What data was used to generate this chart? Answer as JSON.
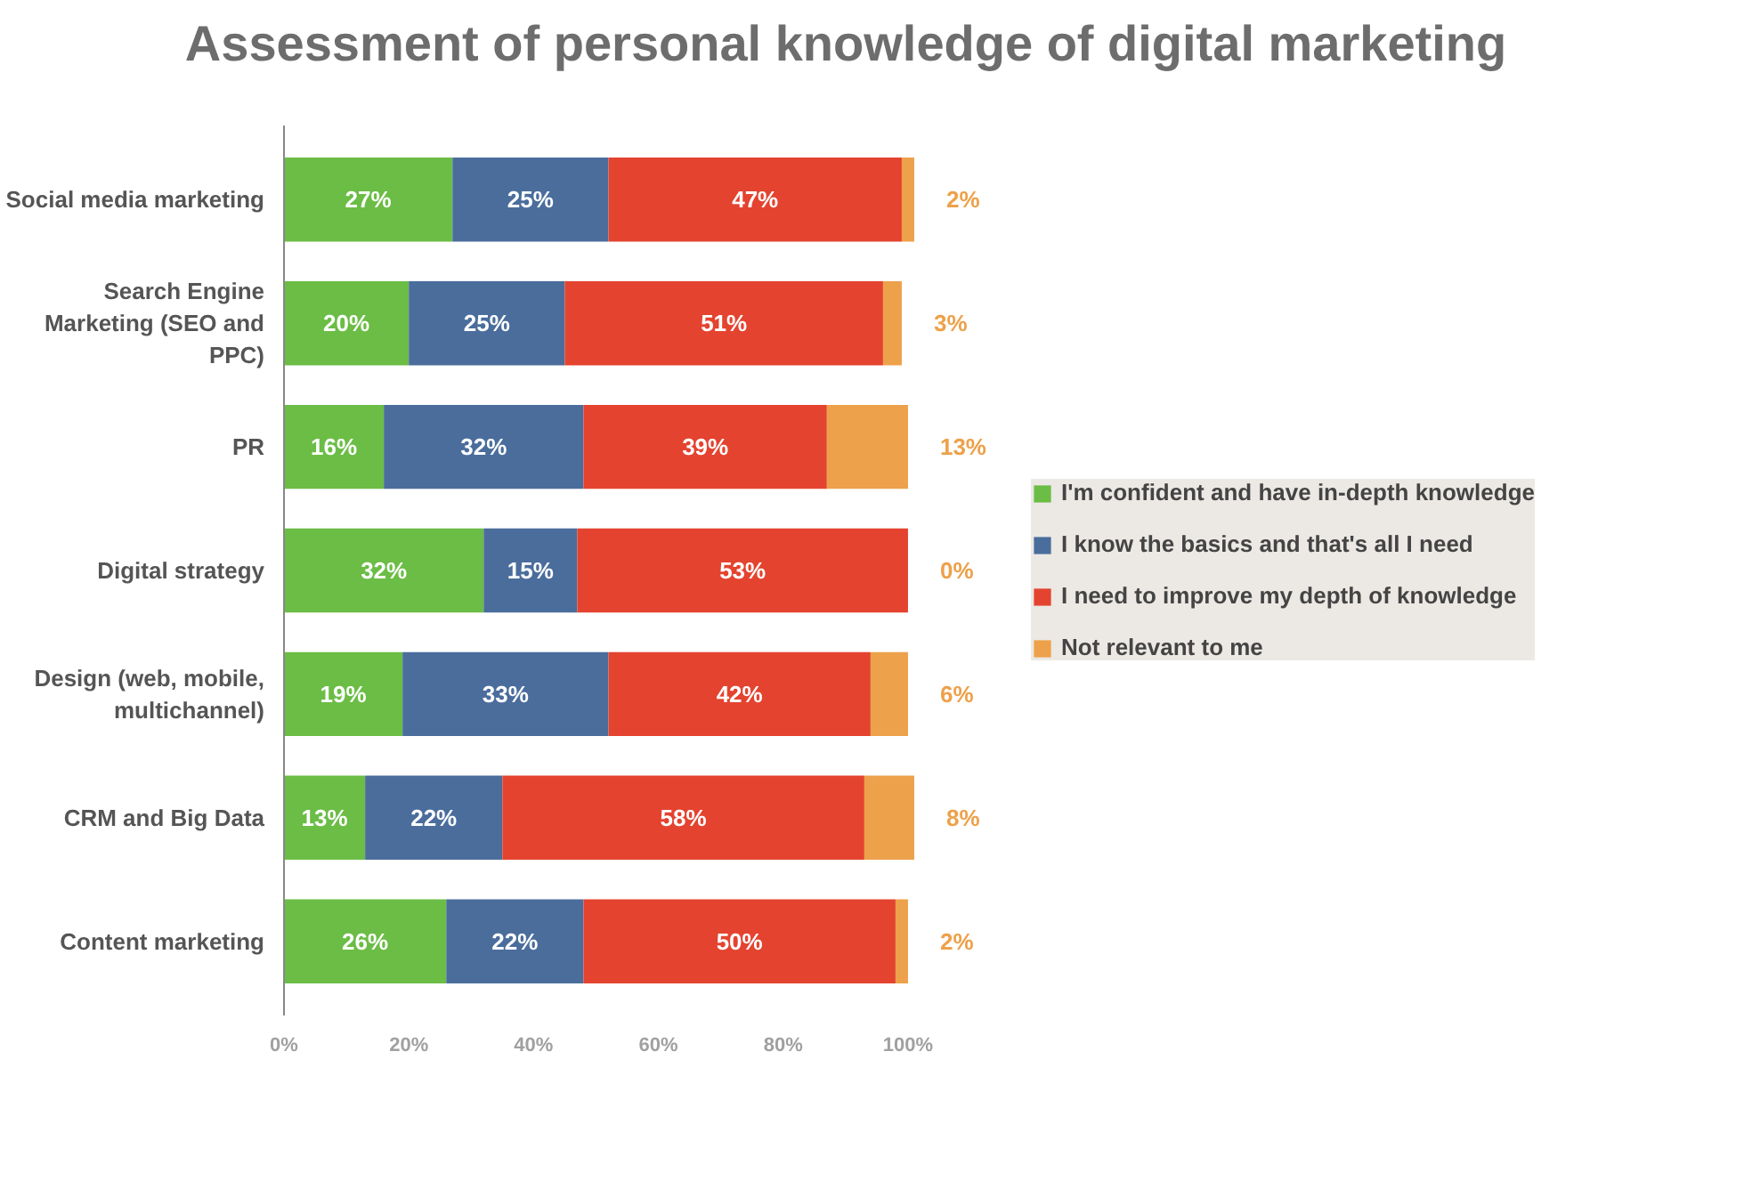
{
  "chart_data": {
    "type": "bar",
    "orientation": "horizontal",
    "stacked": true,
    "title": "Assessment of personal knowledge of digital marketing",
    "categories": [
      "Social media marketing",
      "Search Engine Marketing (SEO and PPC)",
      "PR",
      "Digital strategy",
      "Design (web, mobile, multichannel)",
      "CRM and Big Data",
      "Content marketing"
    ],
    "series": [
      {
        "name": "I'm confident and have in-depth knowledge",
        "color": "#6bbd45",
        "values": [
          27,
          20,
          16,
          32,
          19,
          13,
          26
        ],
        "value_labels": [
          "27%",
          "20%",
          "16%",
          "32%",
          "19%",
          "13%",
          "26%"
        ]
      },
      {
        "name": "I know the basics and that's all I need",
        "color": "#4a6d9c",
        "values": [
          25,
          25,
          32,
          15,
          33,
          22,
          22
        ],
        "value_labels": [
          "25%",
          "25%",
          "32%",
          "15%",
          "33%",
          "22%",
          "22%"
        ]
      },
      {
        "name": "I need to improve my depth of knowledge",
        "color": "#e4432f",
        "values": [
          47,
          51,
          39,
          53,
          42,
          58,
          50
        ],
        "value_labels": [
          "47%",
          "51%",
          "39%",
          "53%",
          "42%",
          "58%",
          "50%"
        ]
      },
      {
        "name": "Not relevant to me",
        "color": "#eda14a",
        "values": [
          2,
          3,
          13,
          0,
          6,
          8,
          2
        ],
        "value_labels": [
          "2%",
          "3%",
          "13%",
          "0%",
          "6%",
          "8%",
          "2%"
        ]
      }
    ],
    "xlim": [
      0,
      101
    ],
    "xticks": [
      {
        "value": 0,
        "label": "0%"
      },
      {
        "value": 20,
        "label": "20%"
      },
      {
        "value": 40,
        "label": "40%"
      },
      {
        "value": 60,
        "label": "60%"
      },
      {
        "value": 80,
        "label": "80%"
      },
      {
        "value": 100,
        "label": "100%"
      }
    ],
    "legend": "right",
    "grid": false
  }
}
